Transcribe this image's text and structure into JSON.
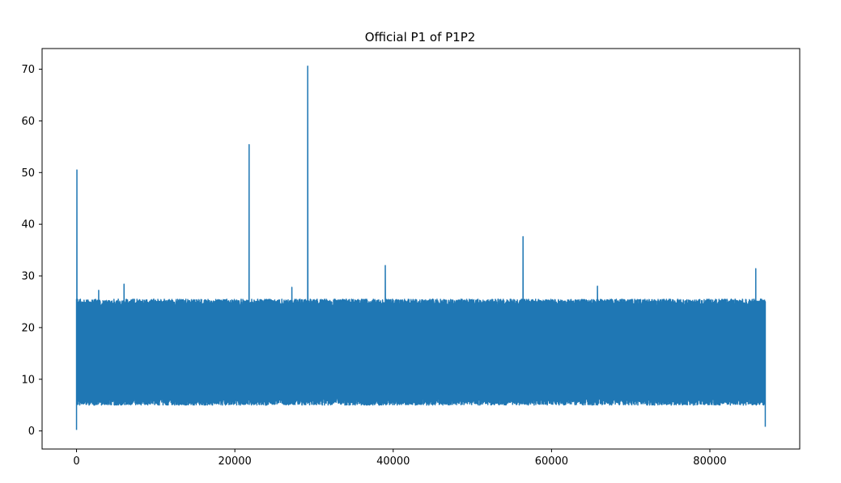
{
  "chart_data": {
    "type": "line",
    "title": "Official P1 of P1P2",
    "xlabel": "",
    "ylabel": "",
    "xlim": [
      -4350,
      91350
    ],
    "ylim": [
      -3.5,
      74
    ],
    "x_ticks": [
      0,
      20000,
      40000,
      60000,
      80000
    ],
    "y_ticks": [
      0,
      10,
      20,
      30,
      40,
      50,
      60,
      70
    ],
    "grid": false,
    "legend": "none",
    "series": [
      {
        "color": "#1f77b4",
        "x_range": [
          0,
          87000
        ],
        "band_low": 5,
        "band_high": 25.5,
        "start_value": 0.2,
        "end_value": 0.8,
        "peaks": [
          {
            "x": 50,
            "y": 50.5
          },
          {
            "x": 2800,
            "y": 27.2
          },
          {
            "x": 6000,
            "y": 28.4
          },
          {
            "x": 21800,
            "y": 55.4
          },
          {
            "x": 27200,
            "y": 27.8
          },
          {
            "x": 29200,
            "y": 70.6
          },
          {
            "x": 39000,
            "y": 32.0
          },
          {
            "x": 56400,
            "y": 37.6
          },
          {
            "x": 65800,
            "y": 28.0
          },
          {
            "x": 85800,
            "y": 31.4
          }
        ]
      }
    ]
  }
}
